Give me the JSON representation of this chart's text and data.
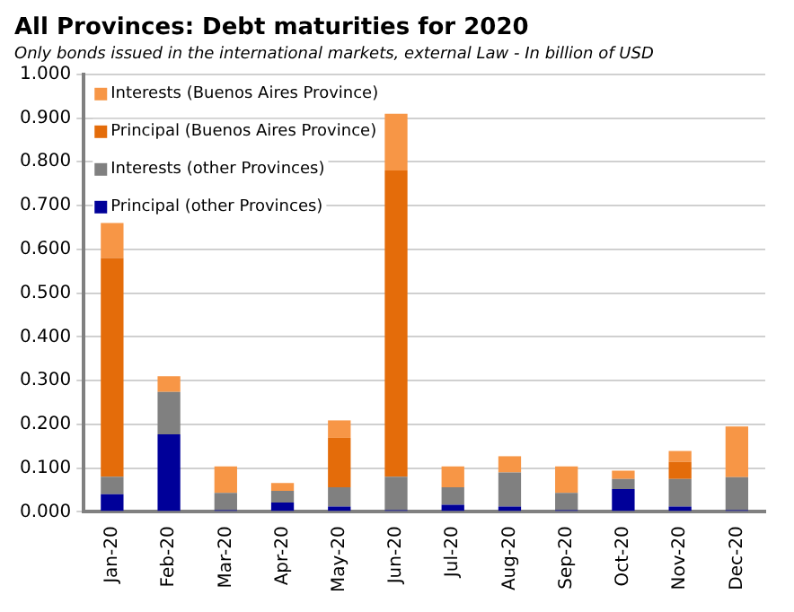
{
  "chart_data": {
    "type": "bar",
    "title": "All Provinces: Debt maturities for 2020",
    "subtitle": "Only bonds issued in the international markets, external Law - In billion of USD",
    "categories": [
      "Jan-20",
      "Feb-20",
      "Mar-20",
      "Apr-20",
      "May-20",
      "Jun-20",
      "Jul-20",
      "Aug-20",
      "Sep-20",
      "Oct-20",
      "Nov-20",
      "Dec-20"
    ],
    "series": [
      {
        "name": "Principal (other Provinces)",
        "color": "#000099",
        "values": [
          0.04,
          0.177,
          0.004,
          0.021,
          0.012,
          0.004,
          0.016,
          0.012,
          0.004,
          0.052,
          0.012,
          0.004
        ]
      },
      {
        "name": "Interests (other Provinces)",
        "color": "#808080",
        "values": [
          0.04,
          0.097,
          0.039,
          0.027,
          0.044,
          0.076,
          0.04,
          0.078,
          0.039,
          0.023,
          0.063,
          0.075
        ]
      },
      {
        "name": "Principal (Buenos Aires Province)",
        "color": "#e46c0a",
        "values": [
          0.5,
          0,
          0,
          0,
          0.113,
          0.7,
          0,
          0,
          0,
          0,
          0.039,
          0
        ]
      },
      {
        "name": "Interests (Buenos Aires Province)",
        "color": "#f79646",
        "values": [
          0.08,
          0.036,
          0.061,
          0.018,
          0.04,
          0.13,
          0.048,
          0.037,
          0.061,
          0.019,
          0.025,
          0.116
        ]
      }
    ],
    "stacked": true,
    "ylim": [
      0,
      1
    ],
    "yticks": [
      {
        "value": 0,
        "label": "0.000"
      },
      {
        "value": 0.1,
        "label": "0.100"
      },
      {
        "value": 0.2,
        "label": "0.200"
      },
      {
        "value": 0.3,
        "label": "0.300"
      },
      {
        "value": 0.4,
        "label": "0.400"
      },
      {
        "value": 0.5,
        "label": "0.500"
      },
      {
        "value": 0.6,
        "label": "0.600"
      },
      {
        "value": 0.7,
        "label": "0.700"
      },
      {
        "value": 0.8,
        "label": "0.800"
      },
      {
        "value": 0.9,
        "label": "0.900"
      },
      {
        "value": 1,
        "label": "1.000"
      }
    ],
    "grid": "y",
    "legend": "top left"
  }
}
